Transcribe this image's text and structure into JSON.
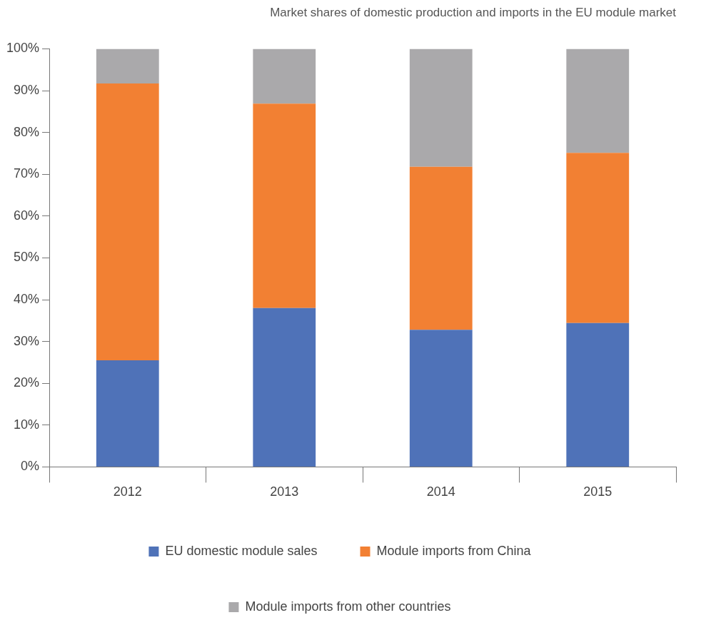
{
  "chart_data": {
    "type": "bar",
    "title": "Market shares of domestic production and imports in the EU module market",
    "categories": [
      "2012",
      "2013",
      "2014",
      "2015"
    ],
    "stacked": true,
    "series": [
      {
        "name": "EU domestic module sales",
        "color": "#4f72b8",
        "values": [
          25.5,
          38.0,
          32.8,
          34.4
        ]
      },
      {
        "name": "Module imports from China",
        "color": "#f28033",
        "values": [
          66.2,
          48.9,
          39.0,
          40.7
        ]
      },
      {
        "name": "Module imports from other countries",
        "color": "#aaa9ab",
        "values": [
          8.3,
          13.1,
          28.2,
          24.9
        ]
      }
    ],
    "ylim": [
      0,
      100
    ],
    "yticks": [
      {
        "value": 0,
        "label": "0%"
      },
      {
        "value": 10,
        "label": "10%"
      },
      {
        "value": 20,
        "label": "20%"
      },
      {
        "value": 30,
        "label": "30%"
      },
      {
        "value": 40,
        "label": "40%"
      },
      {
        "value": 50,
        "label": "50%"
      },
      {
        "value": 60,
        "label": "60%"
      },
      {
        "value": 70,
        "label": "70%"
      },
      {
        "value": 80,
        "label": "80%"
      },
      {
        "value": 90,
        "label": "90%"
      },
      {
        "value": 100,
        "label": "100%"
      }
    ],
    "grid": false,
    "legend": "bottom"
  }
}
